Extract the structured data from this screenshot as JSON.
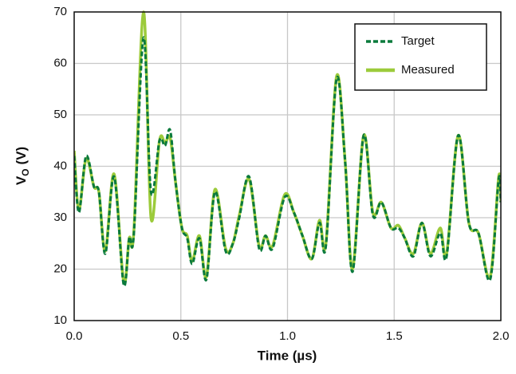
{
  "chart_data": {
    "type": "line",
    "x_label": "Time (µs)",
    "y_label": {
      "symbol": "V",
      "subscript": "O",
      "unit": "(V)"
    },
    "x": [
      0,
      0.022,
      0.056,
      0.093,
      0.116,
      0.146,
      0.187,
      0.232,
      0.258,
      0.28,
      0.325,
      0.36,
      0.4,
      0.426,
      0.45,
      0.475,
      0.505,
      0.53,
      0.553,
      0.587,
      0.62,
      0.66,
      0.71,
      0.744,
      0.774,
      0.82,
      0.867,
      0.897,
      0.93,
      0.987,
      1.03,
      1.07,
      1.114,
      1.15,
      1.18,
      1.23,
      1.27,
      1.305,
      1.357,
      1.4,
      1.44,
      1.485,
      1.52,
      1.55,
      1.59,
      1.63,
      1.67,
      1.716,
      1.746,
      1.8,
      1.85,
      1.895,
      1.95,
      1.99,
      2.0
    ],
    "series": [
      {
        "name": "Target",
        "color": "#0a7a3c",
        "dash": true,
        "values": [
          42,
          31,
          42,
          36,
          35,
          23,
          38,
          17,
          26,
          27,
          65,
          35,
          45,
          44,
          47,
          37,
          28,
          26,
          21,
          26,
          18,
          35,
          23.5,
          25,
          30,
          38,
          24,
          26.5,
          24,
          34,
          31,
          26.5,
          22,
          29,
          24.5,
          57,
          41,
          19.5,
          46,
          30.5,
          33,
          28,
          28,
          26,
          22.5,
          29,
          22.5,
          27,
          22.5,
          46,
          29,
          27,
          18,
          37.5,
          33
        ]
      },
      {
        "name": "Measured",
        "color": "#9ccb3b",
        "dash": false,
        "values": [
          43,
          31.5,
          41.5,
          36,
          35,
          23.5,
          38.5,
          17.5,
          26,
          27.5,
          70,
          30,
          45,
          44.5,
          45.5,
          37,
          28,
          26.5,
          21.5,
          26.5,
          18.5,
          35.5,
          24,
          25,
          30.5,
          37.5,
          24.5,
          26.5,
          24.5,
          34.5,
          31,
          26.5,
          22,
          29.5,
          25,
          57.5,
          41,
          20,
          46,
          31,
          33,
          28,
          28.5,
          26,
          23,
          29,
          23,
          28,
          23,
          46,
          29,
          27,
          18.5,
          38,
          33
        ]
      }
    ],
    "xlim": [
      0,
      2
    ],
    "ylim": [
      10,
      70
    ],
    "xticks": [
      {
        "value": 0,
        "label": "0.0"
      },
      0.5,
      {
        "value": 1,
        "label": "1.0"
      },
      1.5,
      {
        "value": 2,
        "label": "2.0"
      }
    ],
    "yticks": [
      10,
      20,
      30,
      40,
      50,
      60,
      70
    ],
    "grid": true,
    "legend": "top-right"
  }
}
